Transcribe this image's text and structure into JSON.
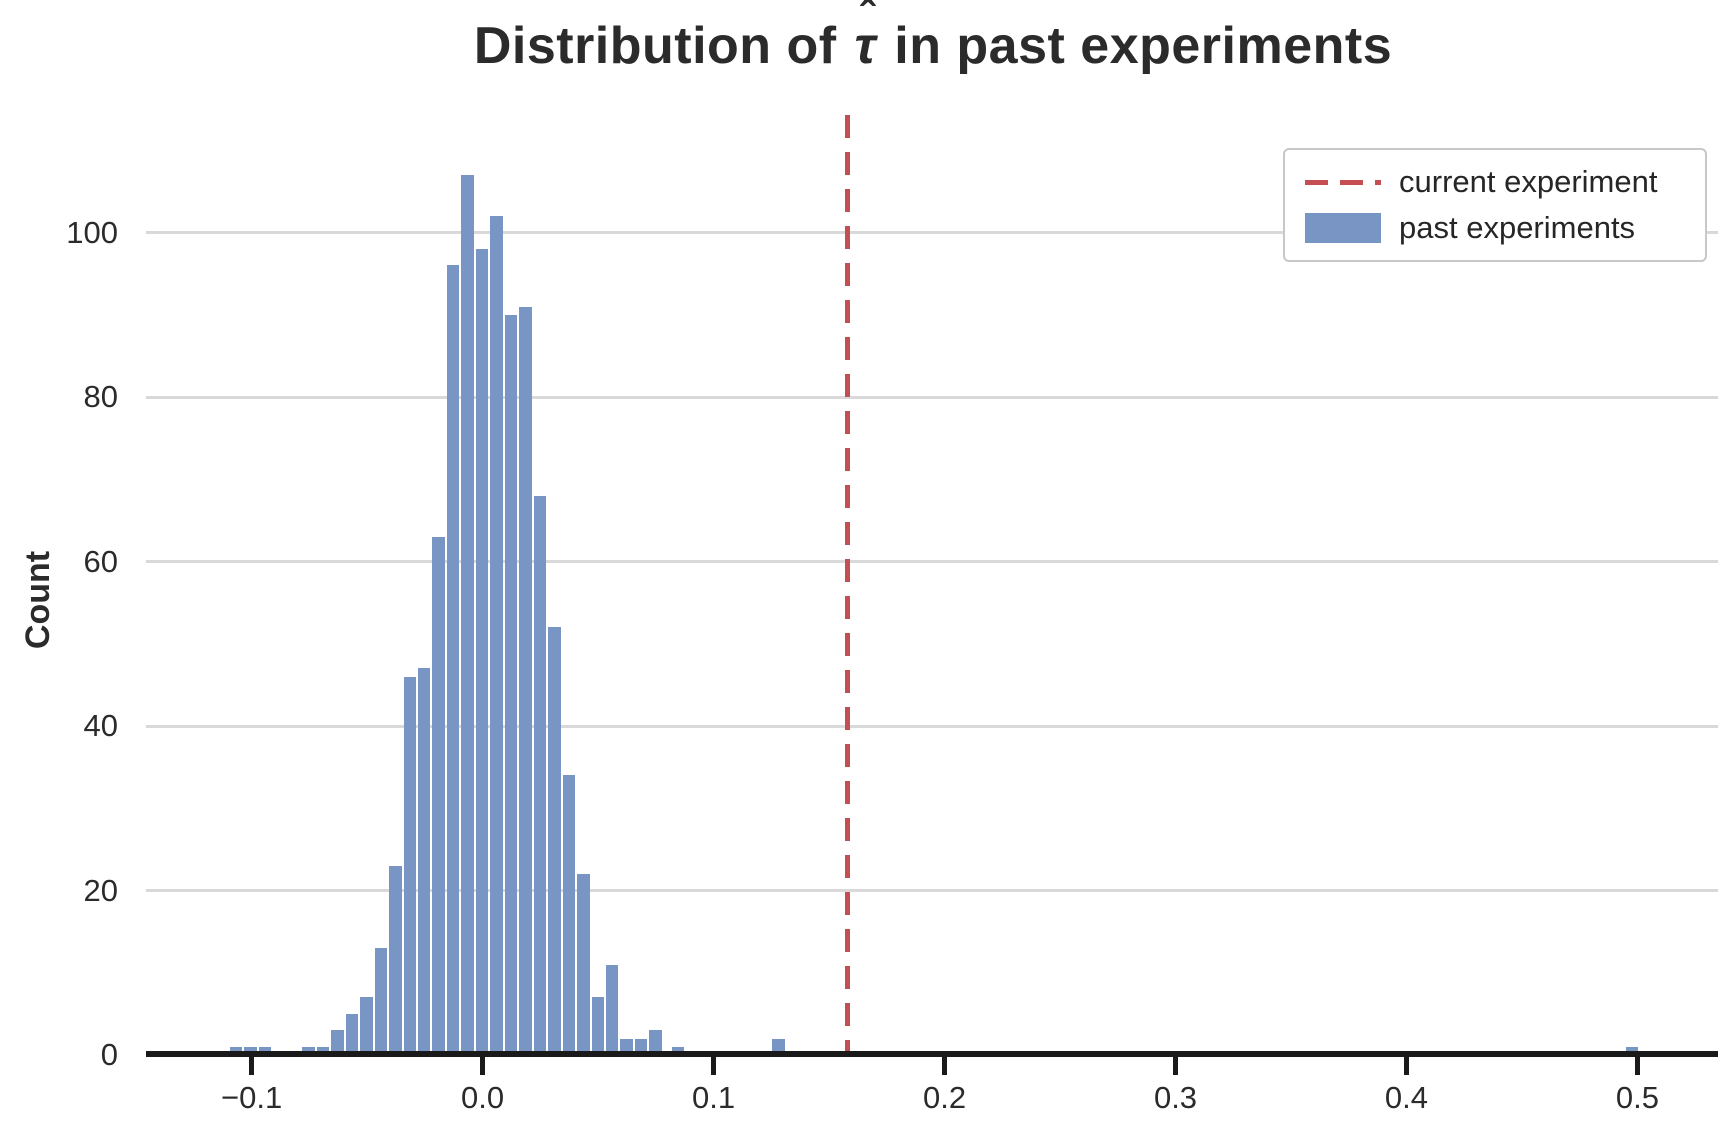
{
  "title": {
    "prefix": "Distribution of ",
    "tau": "τ",
    "hat": "ˆ",
    "suffix": " in past experiments"
  },
  "ylabel": "Count",
  "legend": {
    "items": [
      {
        "label": "current experiment",
        "swatch": "dashed-line",
        "color": "#c44e52"
      },
      {
        "label": "past experiments",
        "swatch": "filled-patch",
        "color": "#7995c4"
      }
    ]
  },
  "chart_data": {
    "type": "bar",
    "subtype": "histogram",
    "title": "Distribution of τ̂ in past experiments",
    "xlabel": "",
    "ylabel": "Count",
    "x_ticks": [
      -0.1,
      0.0,
      0.1,
      0.2,
      0.3,
      0.4,
      0.5
    ],
    "x_tick_labels": [
      "−0.1",
      "0.0",
      "0.1",
      "0.2",
      "0.3",
      "0.4",
      "0.5"
    ],
    "y_ticks": [
      0,
      20,
      40,
      60,
      80,
      100
    ],
    "y_tick_labels": [
      "0",
      "20",
      "40",
      "60",
      "80",
      "100"
    ],
    "xlim": [
      -0.144,
      0.534
    ],
    "ylim": [
      0,
      114.3
    ],
    "grid": "horizontal-y",
    "legend_position": "upper-right",
    "bar_color": "#7995c4",
    "grid_color": "#d9d9d9",
    "bin_width": 0.00626,
    "bars": [
      [
        -0.1067,
        1
      ],
      [
        -0.1004,
        1
      ],
      [
        -0.0941,
        1
      ],
      [
        -0.0753,
        1
      ],
      [
        -0.0691,
        1
      ],
      [
        -0.0628,
        3
      ],
      [
        -0.0566,
        5
      ],
      [
        -0.0503,
        7
      ],
      [
        -0.0441,
        13
      ],
      [
        -0.0378,
        23
      ],
      [
        -0.0315,
        46
      ],
      [
        -0.0253,
        47
      ],
      [
        -0.019,
        63
      ],
      [
        -0.0127,
        96
      ],
      [
        -0.0065,
        107
      ],
      [
        -0.0002,
        98
      ],
      [
        0.006,
        102
      ],
      [
        0.0123,
        90
      ],
      [
        0.0185,
        91
      ],
      [
        0.0248,
        68
      ],
      [
        0.0311,
        52
      ],
      [
        0.0373,
        34
      ],
      [
        0.0436,
        22
      ],
      [
        0.0499,
        7
      ],
      [
        0.0561,
        11
      ],
      [
        0.0624,
        2
      ],
      [
        0.0686,
        2
      ],
      [
        0.0749,
        3
      ],
      [
        0.0847,
        1
      ],
      [
        0.1282,
        2
      ],
      [
        0.4977,
        1
      ]
    ],
    "vline": {
      "x": 0.158,
      "color": "#c44e52",
      "style": "dashed",
      "label": "current experiment"
    }
  }
}
